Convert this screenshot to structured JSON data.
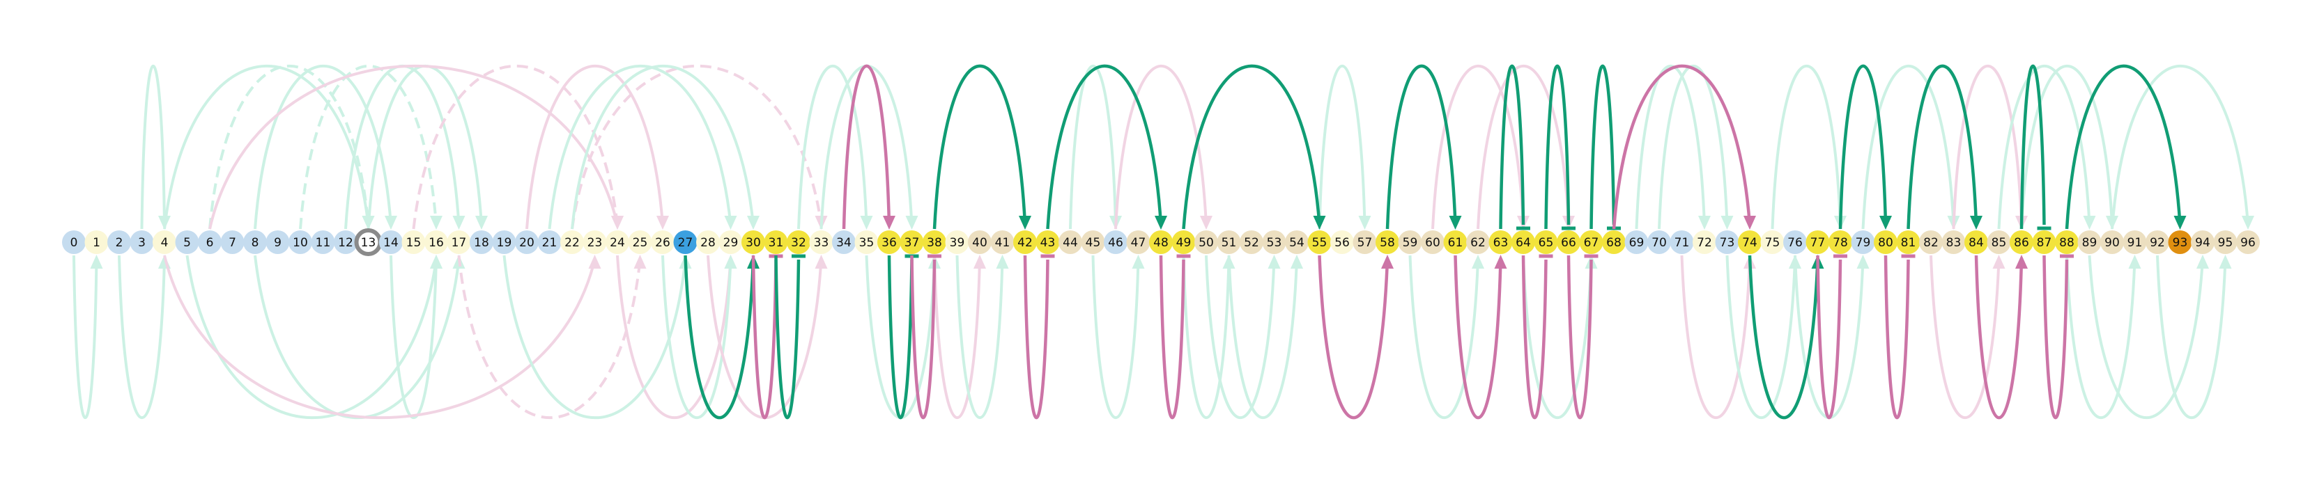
{
  "colors": {
    "background": "#ffffff",
    "node_blue": "#c5dcef",
    "node_cream": "#fbf7d6",
    "node_tan": "#ecdfc0",
    "node_yellow": "#f2e33c",
    "node_accent_blue": "#3ba0e0",
    "node_orange": "#e08f10",
    "ring": "#8a8a8a",
    "arc_green_strong": "#109d74",
    "arc_green_faint": "#ccf1e4",
    "arc_pink_strong": "#cc74a6",
    "arc_pink_faint": "#f1d4e3"
  },
  "nodes": [
    {
      "label": "0",
      "fill": "blue"
    },
    {
      "label": "1",
      "fill": "cream"
    },
    {
      "label": "2",
      "fill": "blue"
    },
    {
      "label": "3",
      "fill": "blue"
    },
    {
      "label": "4",
      "fill": "cream"
    },
    {
      "label": "5",
      "fill": "blue"
    },
    {
      "label": "6",
      "fill": "blue"
    },
    {
      "label": "7",
      "fill": "blue"
    },
    {
      "label": "8",
      "fill": "blue"
    },
    {
      "label": "9",
      "fill": "blue"
    },
    {
      "label": "10",
      "fill": "blue"
    },
    {
      "label": "11",
      "fill": "blue"
    },
    {
      "label": "12",
      "fill": "blue"
    },
    {
      "label": "13",
      "fill": "cream",
      "ring": true
    },
    {
      "label": "14",
      "fill": "blue"
    },
    {
      "label": "15",
      "fill": "cream"
    },
    {
      "label": "16",
      "fill": "cream"
    },
    {
      "label": "17",
      "fill": "cream"
    },
    {
      "label": "18",
      "fill": "blue"
    },
    {
      "label": "19",
      "fill": "blue"
    },
    {
      "label": "20",
      "fill": "blue"
    },
    {
      "label": "21",
      "fill": "blue"
    },
    {
      "label": "22",
      "fill": "cream"
    },
    {
      "label": "23",
      "fill": "cream"
    },
    {
      "label": "24",
      "fill": "cream"
    },
    {
      "label": "25",
      "fill": "cream"
    },
    {
      "label": "26",
      "fill": "cream"
    },
    {
      "label": "27",
      "fill": "accent_blue"
    },
    {
      "label": "28",
      "fill": "cream"
    },
    {
      "label": "29",
      "fill": "cream"
    },
    {
      "label": "30",
      "fill": "yellow"
    },
    {
      "label": "31",
      "fill": "yellow"
    },
    {
      "label": "32",
      "fill": "yellow"
    },
    {
      "label": "33",
      "fill": "cream"
    },
    {
      "label": "34",
      "fill": "blue"
    },
    {
      "label": "35",
      "fill": "cream"
    },
    {
      "label": "36",
      "fill": "yellow"
    },
    {
      "label": "37",
      "fill": "yellow"
    },
    {
      "label": "38",
      "fill": "yellow"
    },
    {
      "label": "39",
      "fill": "cream"
    },
    {
      "label": "40",
      "fill": "tan"
    },
    {
      "label": "41",
      "fill": "tan"
    },
    {
      "label": "42",
      "fill": "yellow"
    },
    {
      "label": "43",
      "fill": "yellow"
    },
    {
      "label": "44",
      "fill": "tan"
    },
    {
      "label": "45",
      "fill": "tan"
    },
    {
      "label": "46",
      "fill": "blue"
    },
    {
      "label": "47",
      "fill": "tan"
    },
    {
      "label": "48",
      "fill": "yellow"
    },
    {
      "label": "49",
      "fill": "yellow"
    },
    {
      "label": "50",
      "fill": "tan"
    },
    {
      "label": "51",
      "fill": "tan"
    },
    {
      "label": "52",
      "fill": "tan"
    },
    {
      "label": "53",
      "fill": "tan"
    },
    {
      "label": "54",
      "fill": "tan"
    },
    {
      "label": "55",
      "fill": "yellow"
    },
    {
      "label": "56",
      "fill": "cream"
    },
    {
      "label": "57",
      "fill": "tan"
    },
    {
      "label": "58",
      "fill": "yellow"
    },
    {
      "label": "59",
      "fill": "tan"
    },
    {
      "label": "60",
      "fill": "tan"
    },
    {
      "label": "61",
      "fill": "yellow"
    },
    {
      "label": "62",
      "fill": "tan"
    },
    {
      "label": "63",
      "fill": "yellow"
    },
    {
      "label": "64",
      "fill": "yellow"
    },
    {
      "label": "65",
      "fill": "yellow"
    },
    {
      "label": "66",
      "fill": "yellow"
    },
    {
      "label": "67",
      "fill": "yellow"
    },
    {
      "label": "68",
      "fill": "yellow"
    },
    {
      "label": "69",
      "fill": "blue"
    },
    {
      "label": "70",
      "fill": "blue"
    },
    {
      "label": "71",
      "fill": "blue"
    },
    {
      "label": "72",
      "fill": "cream"
    },
    {
      "label": "73",
      "fill": "blue"
    },
    {
      "label": "74",
      "fill": "yellow"
    },
    {
      "label": "75",
      "fill": "cream"
    },
    {
      "label": "76",
      "fill": "blue"
    },
    {
      "label": "77",
      "fill": "yellow"
    },
    {
      "label": "78",
      "fill": "yellow"
    },
    {
      "label": "79",
      "fill": "blue"
    },
    {
      "label": "80",
      "fill": "yellow"
    },
    {
      "label": "81",
      "fill": "yellow"
    },
    {
      "label": "82",
      "fill": "tan"
    },
    {
      "label": "83",
      "fill": "tan"
    },
    {
      "label": "84",
      "fill": "yellow"
    },
    {
      "label": "85",
      "fill": "tan"
    },
    {
      "label": "86",
      "fill": "yellow"
    },
    {
      "label": "87",
      "fill": "yellow"
    },
    {
      "label": "88",
      "fill": "yellow"
    },
    {
      "label": "89",
      "fill": "tan"
    },
    {
      "label": "90",
      "fill": "tan"
    },
    {
      "label": "91",
      "fill": "tan"
    },
    {
      "label": "92",
      "fill": "tan"
    },
    {
      "label": "93",
      "fill": "orange"
    },
    {
      "label": "94",
      "fill": "tan"
    },
    {
      "label": "95",
      "fill": "tan"
    },
    {
      "label": "96",
      "fill": "tan"
    }
  ],
  "arcs_strong": [
    {
      "from": 27,
      "to": 30,
      "side": "below",
      "color": "green",
      "head": "arrow"
    },
    {
      "from": 30,
      "to": 31,
      "side": "below",
      "color": "pink",
      "head": "bar"
    },
    {
      "from": 31,
      "to": 32,
      "side": "below",
      "color": "green",
      "head": "bar"
    },
    {
      "from": 34,
      "to": 36,
      "side": "above",
      "color": "pink",
      "head": "arrow"
    },
    {
      "from": 36,
      "to": 37,
      "side": "below",
      "color": "green",
      "head": "bar"
    },
    {
      "from": 37,
      "to": 38,
      "side": "below",
      "color": "pink",
      "head": "bar"
    },
    {
      "from": 38,
      "to": 42,
      "side": "above",
      "color": "green",
      "head": "arrow"
    },
    {
      "from": 42,
      "to": 43,
      "side": "below",
      "color": "pink",
      "head": "bar"
    },
    {
      "from": 43,
      "to": 48,
      "side": "above",
      "color": "green",
      "head": "arrow"
    },
    {
      "from": 48,
      "to": 49,
      "side": "below",
      "color": "pink",
      "head": "bar"
    },
    {
      "from": 49,
      "to": 55,
      "side": "above",
      "color": "green",
      "head": "arrow"
    },
    {
      "from": 55,
      "to": 58,
      "side": "below",
      "color": "pink",
      "head": "arrow"
    },
    {
      "from": 58,
      "to": 61,
      "side": "above",
      "color": "green",
      "head": "arrow"
    },
    {
      "from": 61,
      "to": 63,
      "side": "below",
      "color": "pink",
      "head": "arrow"
    },
    {
      "from": 63,
      "to": 64,
      "side": "above",
      "color": "green",
      "head": "bar"
    },
    {
      "from": 64,
      "to": 65,
      "side": "below",
      "color": "pink",
      "head": "bar"
    },
    {
      "from": 65,
      "to": 66,
      "side": "above",
      "color": "green",
      "head": "bar"
    },
    {
      "from": 66,
      "to": 67,
      "side": "below",
      "color": "pink",
      "head": "bar"
    },
    {
      "from": 67,
      "to": 68,
      "side": "above",
      "color": "green",
      "head": "bar"
    },
    {
      "from": 68,
      "to": 74,
      "side": "above",
      "color": "pink",
      "head": "arrow"
    },
    {
      "from": 74,
      "to": 77,
      "side": "below",
      "color": "green",
      "head": "arrow"
    },
    {
      "from": 77,
      "to": 78,
      "side": "below",
      "color": "pink",
      "head": "bar"
    },
    {
      "from": 78,
      "to": 80,
      "side": "above",
      "color": "green",
      "head": "arrow"
    },
    {
      "from": 80,
      "to": 81,
      "side": "below",
      "color": "pink",
      "head": "bar"
    },
    {
      "from": 81,
      "to": 84,
      "side": "above",
      "color": "green",
      "head": "arrow"
    },
    {
      "from": 84,
      "to": 86,
      "side": "below",
      "color": "pink",
      "head": "arrow"
    },
    {
      "from": 86,
      "to": 87,
      "side": "above",
      "color": "green",
      "head": "bar"
    },
    {
      "from": 87,
      "to": 88,
      "side": "below",
      "color": "pink",
      "head": "bar"
    },
    {
      "from": 88,
      "to": 93,
      "side": "above",
      "color": "green",
      "head": "arrow"
    }
  ],
  "arcs_faint": [
    {
      "from": 3,
      "to": 4,
      "side": "above",
      "color": "green",
      "head": "arrow"
    },
    {
      "from": 0,
      "to": 1,
      "side": "below",
      "color": "green",
      "head": "arrow"
    },
    {
      "from": 2,
      "to": 4,
      "side": "below",
      "color": "green",
      "head": "arrow"
    },
    {
      "from": 4,
      "to": 13,
      "side": "above",
      "color": "green",
      "head": "arrow"
    },
    {
      "from": 6,
      "to": 13,
      "side": "above",
      "color": "green",
      "head": "arrow",
      "dashed": true
    },
    {
      "from": 8,
      "to": 14,
      "side": "above",
      "color": "green",
      "head": "arrow"
    },
    {
      "from": 10,
      "to": 16,
      "side": "above",
      "color": "green",
      "head": "arrow",
      "dashed": true
    },
    {
      "from": 12,
      "to": 17,
      "side": "above",
      "color": "green",
      "head": "arrow"
    },
    {
      "from": 13,
      "to": 18,
      "side": "above",
      "color": "green",
      "head": "arrow"
    },
    {
      "from": 5,
      "to": 16,
      "side": "below",
      "color": "green",
      "head": "arrow"
    },
    {
      "from": 8,
      "to": 17,
      "side": "below",
      "color": "green",
      "head": "arrow"
    },
    {
      "from": 14,
      "to": 16,
      "side": "below",
      "color": "green",
      "head": "arrow"
    },
    {
      "from": 4,
      "to": 23,
      "side": "below",
      "color": "pink",
      "head": "arrow"
    },
    {
      "from": 6,
      "to": 24,
      "side": "above",
      "color": "pink",
      "head": "arrow"
    },
    {
      "from": 15,
      "to": 24,
      "side": "above",
      "color": "pink",
      "head": "arrow",
      "dashed": true
    },
    {
      "from": 17,
      "to": 25,
      "side": "below",
      "color": "pink",
      "head": "arrow",
      "dashed": true
    },
    {
      "from": 20,
      "to": 26,
      "side": "above",
      "color": "pink",
      "head": "arrow"
    },
    {
      "from": 22,
      "to": 33,
      "side": "above",
      "color": "pink",
      "head": "arrow",
      "dashed": true
    },
    {
      "from": 24,
      "to": 29,
      "side": "below",
      "color": "pink",
      "head": "arrow"
    },
    {
      "from": 21,
      "to": 29,
      "side": "above",
      "color": "green",
      "head": "arrow"
    },
    {
      "from": 22,
      "to": 30,
      "side": "above",
      "color": "green",
      "head": "arrow"
    },
    {
      "from": 19,
      "to": 27,
      "side": "below",
      "color": "green",
      "head": "arrow"
    },
    {
      "from": 26,
      "to": 29,
      "side": "below",
      "color": "green",
      "head": "arrow"
    },
    {
      "from": 28,
      "to": 33,
      "side": "below",
      "color": "pink",
      "head": "arrow"
    },
    {
      "from": 32,
      "to": 35,
      "side": "above",
      "color": "green",
      "head": "arrow"
    },
    {
      "from": 33,
      "to": 37,
      "side": "above",
      "color": "green",
      "head": "arrow"
    },
    {
      "from": 35,
      "to": 38,
      "side": "below",
      "color": "green",
      "head": "arrow"
    },
    {
      "from": 38,
      "to": 40,
      "side": "below",
      "color": "pink",
      "head": "arrow"
    },
    {
      "from": 39,
      "to": 41,
      "side": "below",
      "color": "green",
      "head": "arrow"
    },
    {
      "from": 44,
      "to": 46,
      "side": "above",
      "color": "green",
      "head": "arrow"
    },
    {
      "from": 45,
      "to": 47,
      "side": "below",
      "color": "green",
      "head": "arrow"
    },
    {
      "from": 46,
      "to": 50,
      "side": "above",
      "color": "pink",
      "head": "arrow"
    },
    {
      "from": 49,
      "to": 51,
      "side": "below",
      "color": "green",
      "head": "arrow"
    },
    {
      "from": 50,
      "to": 53,
      "side": "below",
      "color": "green",
      "head": "arrow"
    },
    {
      "from": 51,
      "to": 54,
      "side": "below",
      "color": "green",
      "head": "arrow"
    },
    {
      "from": 55,
      "to": 57,
      "side": "above",
      "color": "green",
      "head": "arrow"
    },
    {
      "from": 59,
      "to": 62,
      "side": "below",
      "color": "green",
      "head": "arrow"
    },
    {
      "from": 60,
      "to": 64,
      "side": "above",
      "color": "pink",
      "head": "arrow"
    },
    {
      "from": 62,
      "to": 66,
      "side": "above",
      "color": "pink",
      "head": "arrow"
    },
    {
      "from": 64,
      "to": 67,
      "side": "below",
      "color": "green",
      "head": "arrow"
    },
    {
      "from": 69,
      "to": 72,
      "side": "above",
      "color": "green",
      "head": "arrow"
    },
    {
      "from": 70,
      "to": 73,
      "side": "above",
      "color": "green",
      "head": "arrow"
    },
    {
      "from": 71,
      "to": 74,
      "side": "below",
      "color": "pink",
      "head": "arrow"
    },
    {
      "from": 73,
      "to": 76,
      "side": "below",
      "color": "green",
      "head": "arrow"
    },
    {
      "from": 75,
      "to": 78,
      "side": "above",
      "color": "green",
      "head": "arrow"
    },
    {
      "from": 76,
      "to": 79,
      "side": "below",
      "color": "green",
      "head": "arrow"
    },
    {
      "from": 79,
      "to": 83,
      "side": "above",
      "color": "green",
      "head": "arrow"
    },
    {
      "from": 82,
      "to": 85,
      "side": "below",
      "color": "pink",
      "head": "arrow"
    },
    {
      "from": 83,
      "to": 86,
      "side": "above",
      "color": "pink",
      "head": "arrow"
    },
    {
      "from": 85,
      "to": 89,
      "side": "above",
      "color": "green",
      "head": "arrow"
    },
    {
      "from": 86,
      "to": 90,
      "side": "above",
      "color": "green",
      "head": "arrow"
    },
    {
      "from": 88,
      "to": 91,
      "side": "below",
      "color": "green",
      "head": "arrow"
    },
    {
      "from": 89,
      "to": 94,
      "side": "below",
      "color": "green",
      "head": "arrow"
    },
    {
      "from": 90,
      "to": 96,
      "side": "above",
      "color": "green",
      "head": "arrow"
    },
    {
      "from": 92,
      "to": 95,
      "side": "below",
      "color": "green",
      "head": "arrow"
    }
  ]
}
